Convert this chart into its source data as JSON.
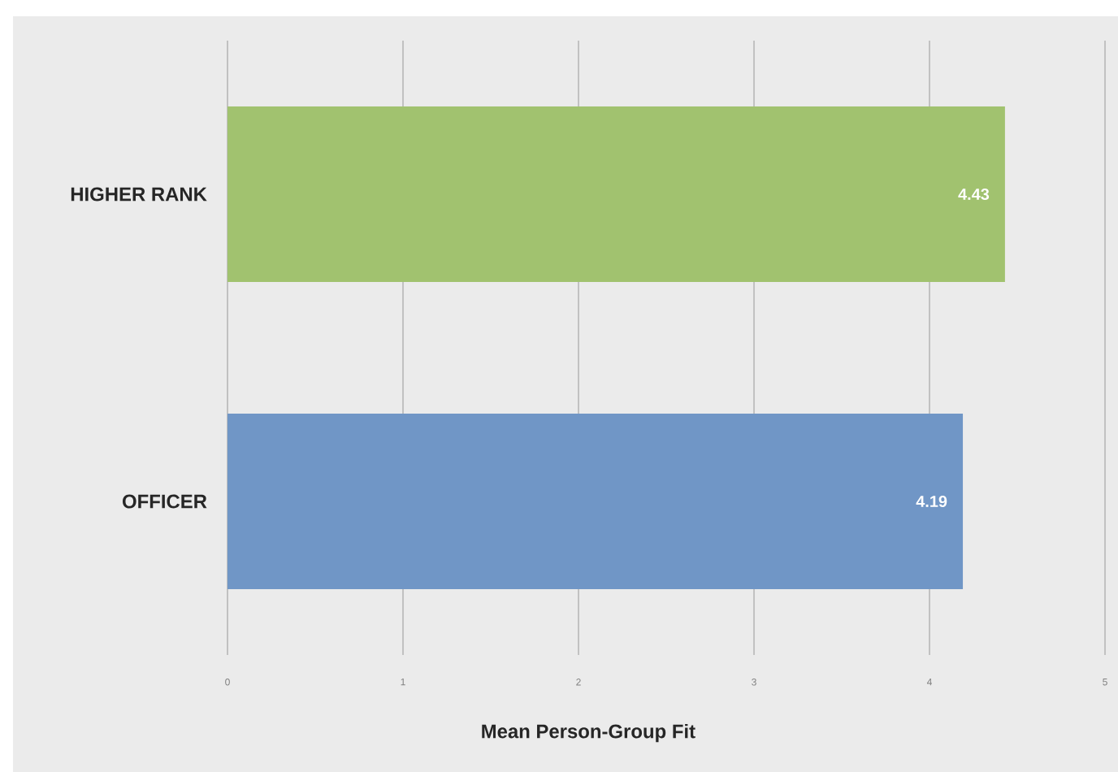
{
  "chart_data": {
    "type": "bar",
    "orientation": "horizontal",
    "categories": [
      "HIGHER RANK",
      "OFFICER"
    ],
    "values": [
      4.43,
      4.19
    ],
    "colors": [
      "#a1c26f",
      "#7096c6"
    ],
    "data_labels": true,
    "xlabel": "Mean Person-Group Fit",
    "xlim": [
      0,
      5
    ],
    "xticks": [
      0,
      1,
      2,
      3,
      4,
      5
    ],
    "grid": "x"
  }
}
